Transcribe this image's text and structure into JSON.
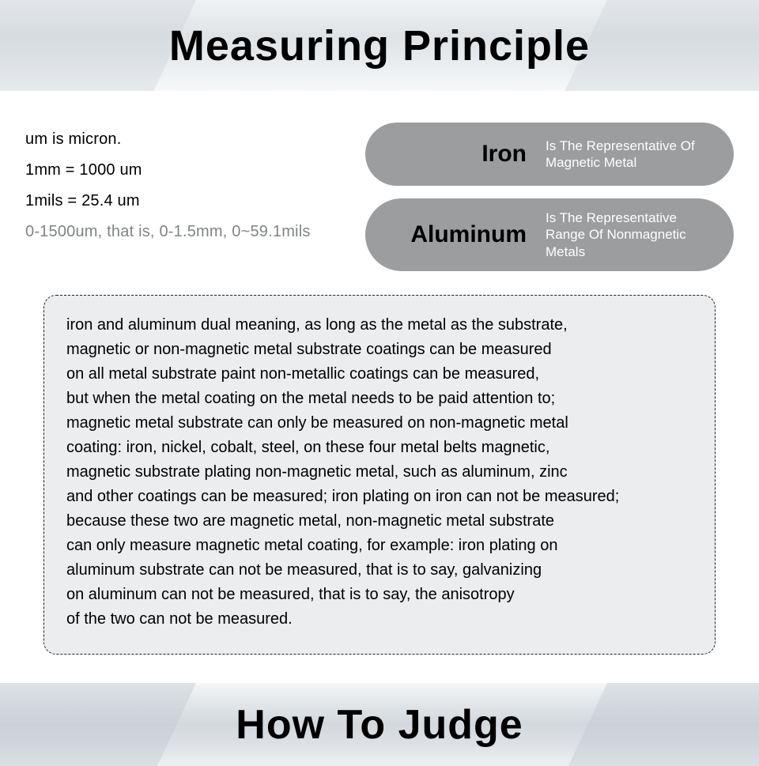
{
  "header": {
    "title": "Measuring Principle",
    "title_fontsize": 54,
    "title_color": "#000000",
    "banner_gradient_top": "#f0f2f4",
    "banner_gradient_bottom": "#f6f8f9"
  },
  "facts": {
    "line1": "um is micron.",
    "line2": "1mm = 1000 um",
    "line3": "1mils = 25.4 um",
    "line4": "0-1500um, that is, 0-1.5mm, 0~59.1mils",
    "line4_color": "#808486",
    "fontsize": 20
  },
  "pills": {
    "bg_color": "#9b9d9e",
    "key_color": "#000000",
    "desc_color": "#ffffff",
    "key_fontsize": 30,
    "desc_fontsize": 17,
    "items": [
      {
        "key": "Iron",
        "desc": "Is The Representative\nOf Magnetic Metal"
      },
      {
        "key": "Aluminum",
        "desc": "Is The Representative\nRange Of Nonmagnetic\nMetals"
      }
    ]
  },
  "detail": {
    "box_border_color": "#222222",
    "box_bg_color": "#ebedee",
    "fontsize": 20,
    "line_height": 1.55,
    "text": "iron and aluminum dual meaning, as long as the metal as the substrate,\nmagnetic or non-magnetic metal substrate coatings can be measured\non all metal substrate paint non-metallic coatings can be measured,\nbut when the metal coating on the metal needs to be paid attention to;\nmagnetic metal substrate can only be measured on non-magnetic metal\ncoating: iron, nickel, cobalt, steel, on these four metal belts magnetic,\nmagnetic substrate plating non-magnetic metal, such as aluminum, zinc\nand other coatings can be measured; iron plating on iron can not be measured;\nbecause these two are magnetic metal, non-magnetic metal substrate\ncan only measure magnetic metal coating, for example: iron plating on\naluminum substrate can not be measured, that is to say, galvanizing\non aluminum can not be measured, that is to say, the anisotropy\nof the two can not be measured."
  },
  "footer": {
    "title": "How To Judge",
    "title_fontsize": 52,
    "title_color": "#000000"
  }
}
